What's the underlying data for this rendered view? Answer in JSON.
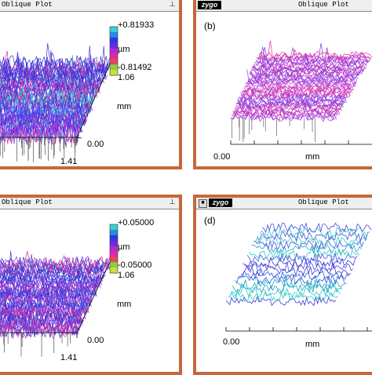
{
  "panels": {
    "a": {
      "window_title": "Oblique Plot",
      "scale_max": "+0.81933",
      "unit": "µm",
      "scale_min": "-0.81492",
      "scale_extra": "1.06",
      "axis_unit_side": "mm",
      "axis_zero": "0.00",
      "axis_end": "1.41"
    },
    "b": {
      "panel_label": "(b)",
      "brand": "zygo",
      "window_title": "Oblique Plot",
      "axis_zero": "0.00",
      "axis_unit": "mm"
    },
    "c": {
      "window_title": "Oblique Plot",
      "scale_max": "+0.05000",
      "unit": "µm",
      "scale_min": "-0.05000",
      "scale_extra": "1.06",
      "axis_unit_side": "mm",
      "axis_zero": "0.00",
      "axis_end": "1.41"
    },
    "d": {
      "panel_label": "(d)",
      "brand": "zygo",
      "window_title": "Oblique Plot",
      "axis_zero": "0.00",
      "axis_unit": "mm"
    }
  },
  "icons": {
    "pin": "pin-icon",
    "system_menu": "system-menu-icon"
  },
  "colors": {
    "frame": "#c8673a",
    "titlebar": "#efefef",
    "surface_blue": "#3b2fd0",
    "surface_magenta": "#e0209a",
    "surface_cyan": "#2ec9c9"
  }
}
